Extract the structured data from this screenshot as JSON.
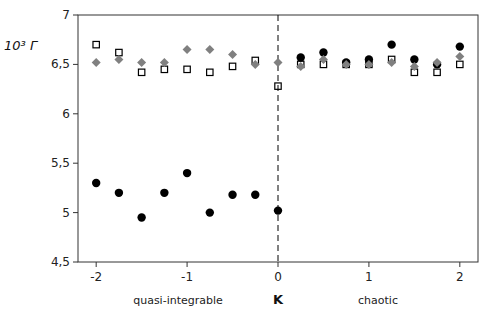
{
  "chart_data": {
    "type": "scatter",
    "xlabel": "K",
    "ylabel": "10³ Γ",
    "annotations": [
      "quasi-integrable",
      "chaotic"
    ],
    "xlim": [
      -2.2,
      2.2
    ],
    "ylim": [
      4.5,
      7.0
    ],
    "xticks": [
      -2,
      -1,
      0,
      1,
      2
    ],
    "yticks": [
      {
        "value": 4.5,
        "label": "4,5"
      },
      5,
      {
        "value": 5.5,
        "label": "5,5"
      },
      6,
      {
        "value": 6.5,
        "label": "6,5"
      },
      7
    ],
    "grid": false,
    "vline": {
      "x": 0,
      "line_style": "dashed"
    },
    "series": [
      {
        "marker": "circle",
        "color": "#000000",
        "x": [
          -2.0,
          -1.75,
          -1.5,
          -1.25,
          -1.0,
          -0.75,
          -0.5,
          -0.25,
          0.0,
          0.25,
          0.5,
          0.75,
          1.0,
          1.25,
          1.5,
          1.75,
          2.0
        ],
        "values": [
          5.3,
          5.2,
          4.95,
          5.2,
          5.4,
          5.0,
          5.18,
          5.18,
          5.02,
          6.57,
          6.62,
          6.52,
          6.55,
          6.7,
          6.55,
          6.5,
          6.68
        ]
      },
      {
        "marker": "open-square",
        "color": "#000000",
        "x": [
          -2.0,
          -1.75,
          -1.5,
          -1.25,
          -1.0,
          -0.75,
          -0.5,
          -0.25,
          0.0,
          0.25,
          0.5,
          0.75,
          1.0,
          1.25,
          1.5,
          1.75,
          2.0
        ],
        "values": [
          6.7,
          6.62,
          6.42,
          6.45,
          6.45,
          6.42,
          6.48,
          6.54,
          6.28,
          6.5,
          6.5,
          6.5,
          6.5,
          6.55,
          6.42,
          6.42,
          6.5
        ]
      },
      {
        "marker": "diamond",
        "color": "#808080",
        "x": [
          -2.0,
          -1.75,
          -1.5,
          -1.25,
          -1.0,
          -0.75,
          -0.5,
          -0.25,
          0.0,
          0.25,
          0.5,
          0.75,
          1.0,
          1.25,
          1.5,
          1.75,
          2.0
        ],
        "values": [
          6.52,
          6.55,
          6.52,
          6.52,
          6.65,
          6.65,
          6.6,
          6.5,
          6.52,
          6.48,
          6.55,
          6.5,
          6.5,
          6.52,
          6.48,
          6.52,
          6.58
        ]
      }
    ]
  }
}
